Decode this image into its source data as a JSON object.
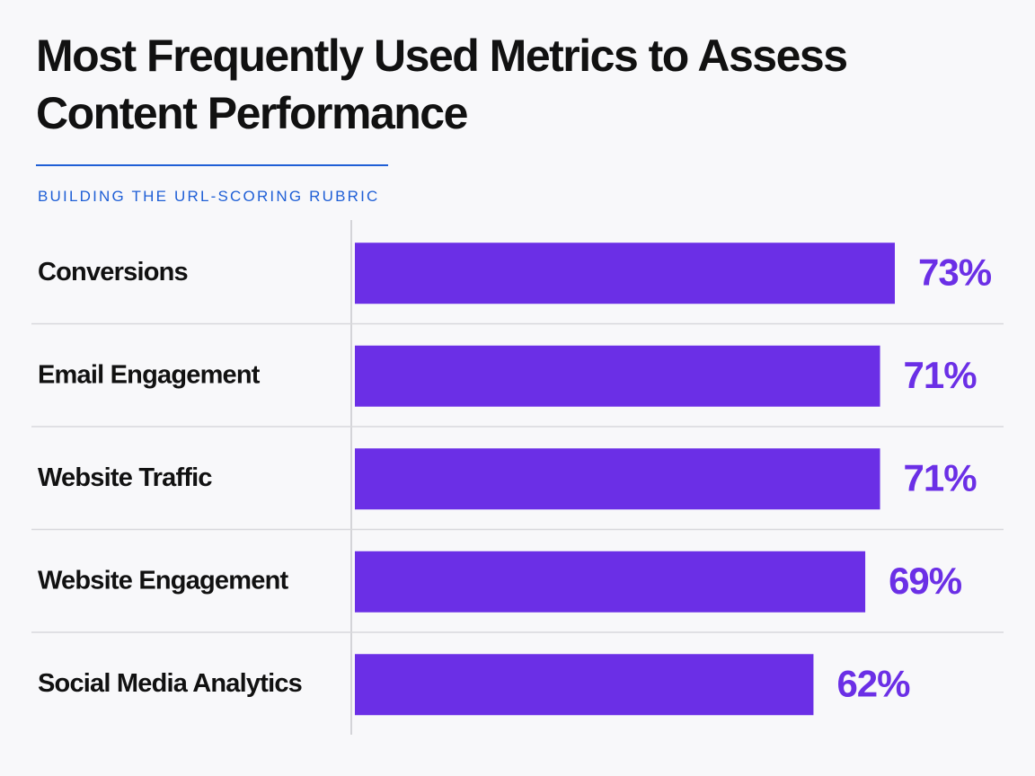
{
  "chart_data": {
    "type": "bar",
    "orientation": "horizontal",
    "title": "Most Frequently Used Metrics to Assess Content Performance",
    "subtitle": "BUILDING THE URL-SCORING RUBRIC",
    "categories": [
      "Conversions",
      "Email Engagement",
      "Website Traffic",
      "Website Engagement",
      "Social Media Analytics"
    ],
    "values": [
      73,
      71,
      71,
      69,
      62
    ],
    "value_labels": [
      "73%",
      "71%",
      "71%",
      "69%",
      "62%"
    ],
    "color": "#6b2fe6"
  }
}
